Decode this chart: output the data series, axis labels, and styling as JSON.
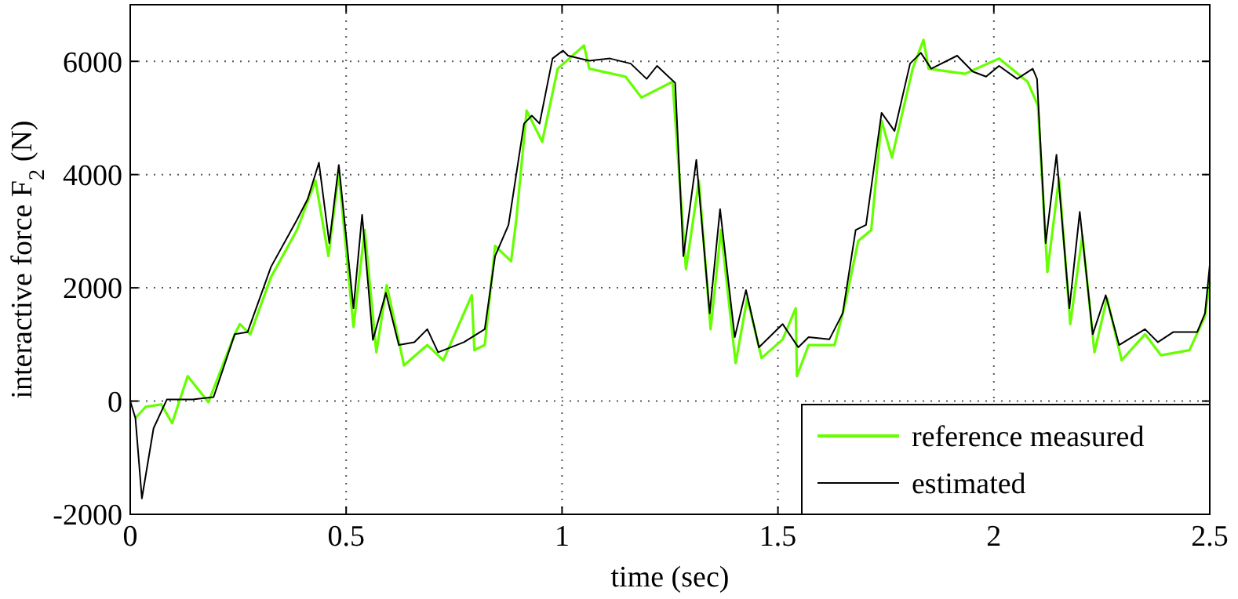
{
  "chart_data": {
    "type": "line",
    "xlabel": "time (sec)",
    "ylabel": "interactive force F$_{2}$ (N)",
    "xlim": [
      0,
      2.5
    ],
    "ylim": [
      -2000,
      7000
    ],
    "xticks": [
      0,
      {
        "value": 0.5,
        "label": "0.5"
      },
      1,
      {
        "value": 1.5,
        "label": "1.5"
      },
      2,
      {
        "value": 2.5,
        "label": "2.5"
      }
    ],
    "yticks": [
      -2000,
      0,
      2000,
      4000,
      6000
    ],
    "grid": true,
    "legend": "bottom right",
    "line_style": "solid",
    "series": [
      {
        "name": "reference measured",
        "color": "#66ff00",
        "x": [
          0.012,
          0.036,
          0.072,
          0.097,
          0.133,
          0.181,
          0.242,
          0.254,
          0.278,
          0.326,
          0.386,
          0.429,
          0.459,
          0.483,
          0.517,
          0.543,
          0.57,
          0.594,
          0.634,
          0.688,
          0.725,
          0.791,
          0.797,
          0.821,
          0.845,
          0.882,
          0.894,
          0.918,
          0.954,
          0.99,
          1.051,
          1.063,
          1.147,
          1.184,
          1.256,
          1.287,
          1.317,
          1.344,
          1.368,
          1.402,
          1.429,
          1.462,
          1.511,
          1.541,
          1.544,
          1.571,
          1.631,
          1.656,
          1.686,
          1.716,
          1.74,
          1.764,
          1.812,
          1.837,
          1.849,
          1.933,
          2.012,
          2.078,
          2.102,
          2.124,
          2.151,
          2.177,
          2.205,
          2.233,
          2.262,
          2.296,
          2.35,
          2.387,
          2.453,
          2.489,
          2.5
        ],
        "values": [
          -300,
          -100,
          -60,
          -390,
          440,
          -20,
          1180,
          1360,
          1180,
          2190,
          3020,
          3890,
          2560,
          4030,
          1310,
          3020,
          860,
          2050,
          630,
          990,
          720,
          1870,
          900,
          990,
          2740,
          2470,
          3200,
          5130,
          4580,
          5870,
          6280,
          5870,
          5730,
          5360,
          5640,
          2330,
          3890,
          1270,
          3020,
          670,
          1820,
          760,
          1090,
          1640,
          440,
          990,
          990,
          1730,
          2830,
          3020,
          4950,
          4300,
          5870,
          6380,
          5870,
          5780,
          6050,
          5640,
          5220,
          2280,
          3940,
          1360,
          2930,
          860,
          1820,
          720,
          1180,
          810,
          900,
          1500,
          2100
        ]
      },
      {
        "name": "estimated",
        "color": "#000000",
        "x": [
          0.0,
          0.012,
          0.027,
          0.054,
          0.085,
          0.145,
          0.193,
          0.242,
          0.272,
          0.326,
          0.386,
          0.411,
          0.437,
          0.461,
          0.483,
          0.517,
          0.537,
          0.562,
          0.592,
          0.622,
          0.658,
          0.688,
          0.713,
          0.773,
          0.821,
          0.845,
          0.876,
          0.912,
          0.93,
          0.948,
          0.978,
          1.002,
          1.014,
          1.063,
          1.111,
          1.159,
          1.196,
          1.22,
          1.262,
          1.281,
          1.311,
          1.342,
          1.366,
          1.4,
          1.426,
          1.456,
          1.511,
          1.547,
          1.571,
          1.619,
          1.65,
          1.68,
          1.704,
          1.74,
          1.77,
          1.806,
          1.831,
          1.855,
          1.915,
          1.951,
          1.982,
          2.012,
          2.054,
          2.09,
          2.1,
          2.12,
          2.145,
          2.175,
          2.199,
          2.229,
          2.259,
          2.29,
          2.35,
          2.38,
          2.416,
          2.471,
          2.489,
          2.5
        ],
        "values": [
          0,
          -300,
          -1720,
          -480,
          30,
          30,
          70,
          1180,
          1220,
          2370,
          3200,
          3570,
          4210,
          2790,
          4170,
          1640,
          3290,
          1080,
          1910,
          990,
          1040,
          1270,
          860,
          1040,
          1270,
          2560,
          3110,
          4900,
          5040,
          4900,
          6050,
          6190,
          6100,
          6010,
          6050,
          5960,
          5690,
          5920,
          5620,
          2560,
          4260,
          1550,
          3390,
          1130,
          1960,
          950,
          1360,
          950,
          1130,
          1090,
          1550,
          3020,
          3110,
          5090,
          4770,
          5960,
          6150,
          5870,
          6100,
          5820,
          5730,
          5920,
          5690,
          5870,
          5690,
          2790,
          4350,
          1640,
          3340,
          1180,
          1870,
          990,
          1270,
          1040,
          1220,
          1220,
          1550,
          2400
        ]
      }
    ]
  }
}
